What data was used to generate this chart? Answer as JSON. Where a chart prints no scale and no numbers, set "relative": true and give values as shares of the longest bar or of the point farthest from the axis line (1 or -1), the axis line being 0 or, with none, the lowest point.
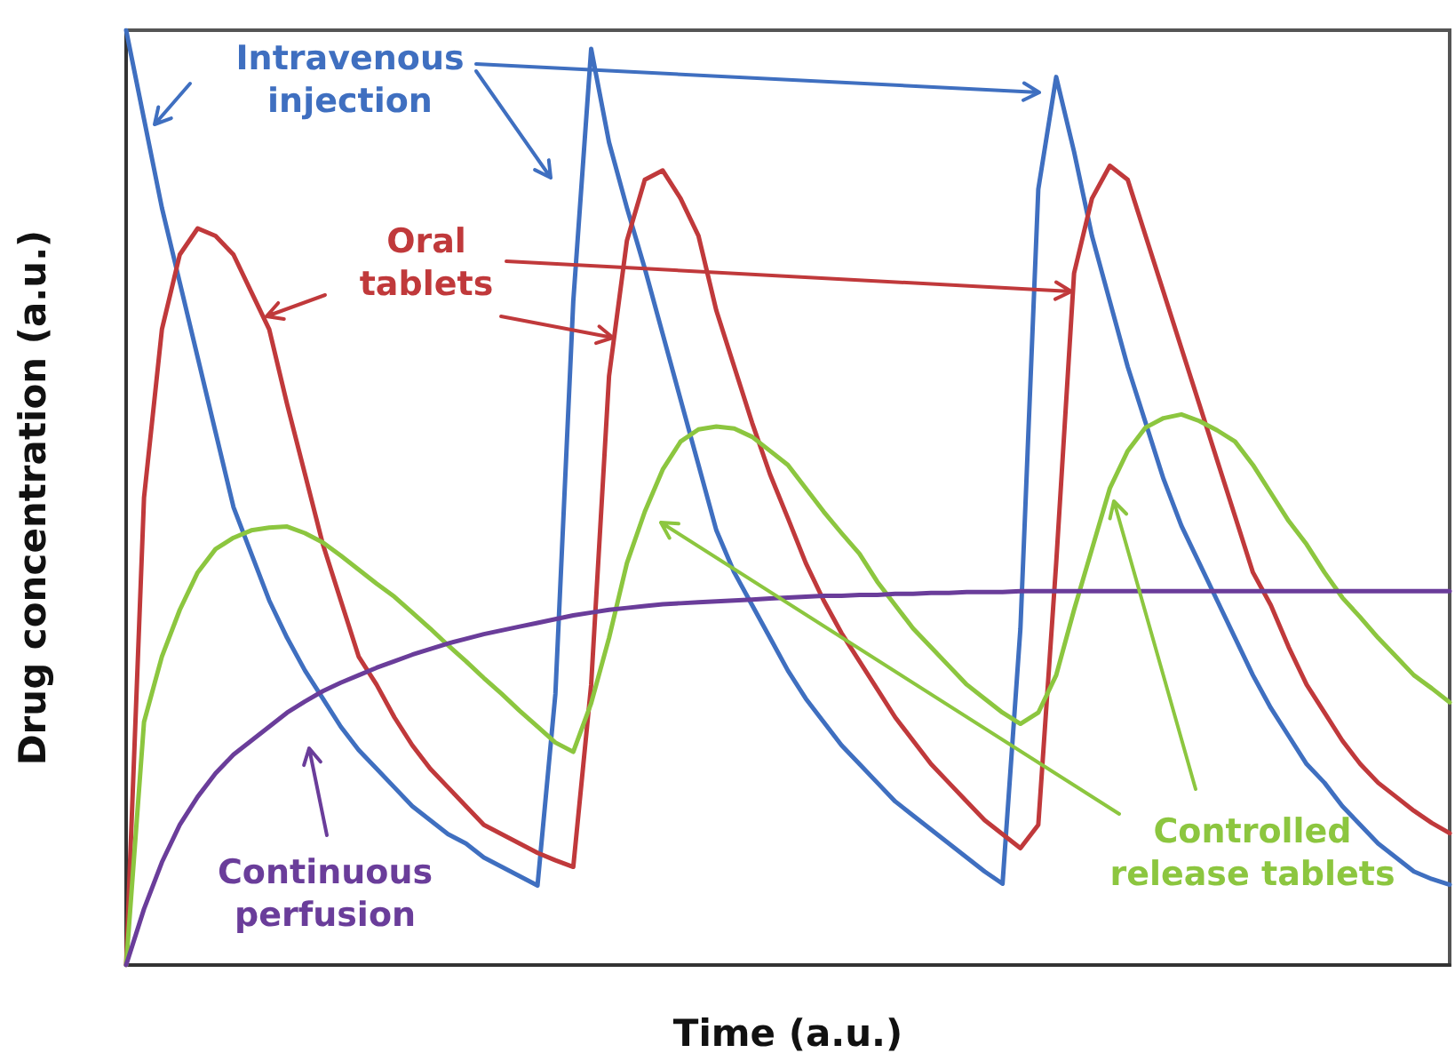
{
  "chart_data": {
    "type": "line",
    "relative": true,
    "xlabel": "Time (a.u.)",
    "ylabel": "Drug concentration (a.u.)",
    "grid": false,
    "marker": "none",
    "categories": [
      null,
      null,
      null,
      null,
      null,
      null,
      null,
      null,
      null,
      null,
      null,
      null,
      null,
      null,
      null,
      null,
      null,
      null,
      null,
      null,
      null,
      null,
      null,
      null,
      null,
      null,
      null,
      null,
      null,
      null,
      null,
      null,
      null,
      null,
      null,
      null,
      null,
      null,
      null,
      null,
      null,
      null,
      null,
      null,
      null,
      null,
      null,
      null,
      null,
      null,
      null,
      null,
      null,
      null,
      null,
      null,
      null,
      null,
      null,
      null,
      null,
      null,
      null,
      null,
      null,
      null,
      null,
      null,
      null,
      null,
      null,
      null,
      null,
      null,
      null
    ],
    "series": [
      {
        "name": "Intravenous injection",
        "color": "#3f6fc0",
        "values": [
          1,
          0.905,
          0.81,
          0.73,
          0.65,
          0.57,
          0.49,
          0.44,
          0.39,
          0.35,
          0.315,
          0.285,
          0.255,
          0.23,
          0.21,
          0.19,
          0.17,
          0.155,
          0.14,
          0.13,
          0.115,
          0.105,
          0.095,
          0.085,
          0.29,
          0.71,
          0.98,
          0.88,
          0.81,
          0.745,
          0.675,
          0.605,
          0.535,
          0.465,
          0.42,
          0.385,
          0.35,
          0.315,
          0.285,
          0.26,
          0.235,
          0.215,
          0.195,
          0.175,
          0.16,
          0.145,
          0.13,
          0.115,
          0.1,
          0.087,
          0.36,
          0.83,
          0.95,
          0.87,
          0.78,
          0.71,
          0.64,
          0.58,
          0.52,
          0.47,
          0.43,
          0.39,
          0.35,
          0.31,
          0.275,
          0.245,
          0.215,
          0.195,
          0.17,
          0.15,
          0.13,
          0.115,
          0.1,
          0.092,
          0.086
        ]
      },
      {
        "name": "Oral tablets",
        "color": "#c0393b",
        "values": [
          0,
          0.5,
          0.68,
          0.76,
          0.788,
          0.78,
          0.76,
          0.72,
          0.68,
          0.6,
          0.525,
          0.45,
          0.39,
          0.33,
          0.3,
          0.265,
          0.235,
          0.21,
          0.19,
          0.17,
          0.15,
          0.14,
          0.13,
          0.12,
          0.112,
          0.105,
          0.3,
          0.63,
          0.775,
          0.84,
          0.85,
          0.82,
          0.78,
          0.7,
          0.64,
          0.58,
          0.525,
          0.478,
          0.43,
          0.39,
          0.355,
          0.325,
          0.295,
          0.265,
          0.24,
          0.215,
          0.195,
          0.175,
          0.155,
          0.14,
          0.125,
          0.15,
          0.43,
          0.74,
          0.82,
          0.855,
          0.84,
          0.78,
          0.72,
          0.66,
          0.6,
          0.54,
          0.48,
          0.42,
          0.385,
          0.34,
          0.3,
          0.27,
          0.24,
          0.215,
          0.195,
          0.18,
          0.165,
          0.152,
          0.141
        ]
      },
      {
        "name": "Controlled release tablets",
        "color": "#8cc63f",
        "values": [
          0,
          0.26,
          0.33,
          0.38,
          0.42,
          0.445,
          0.457,
          0.465,
          0.468,
          0.469,
          0.462,
          0.452,
          0.438,
          0.423,
          0.408,
          0.394,
          0.377,
          0.36,
          0.342,
          0.325,
          0.307,
          0.29,
          0.272,
          0.255,
          0.238,
          0.228,
          0.28,
          0.35,
          0.43,
          0.485,
          0.53,
          0.56,
          0.573,
          0.576,
          0.574,
          0.565,
          0.55,
          0.535,
          0.51,
          0.485,
          0.462,
          0.44,
          0.41,
          0.385,
          0.36,
          0.34,
          0.32,
          0.3,
          0.285,
          0.27,
          0.258,
          0.27,
          0.31,
          0.38,
          0.445,
          0.51,
          0.55,
          0.575,
          0.585,
          0.589,
          0.582,
          0.572,
          0.56,
          0.535,
          0.505,
          0.475,
          0.45,
          0.42,
          0.393,
          0.372,
          0.35,
          0.33,
          0.31,
          0.296,
          0.281
        ]
      },
      {
        "name": "Continuous perfusion",
        "color": "#6a3d9a",
        "values": [
          0,
          0.06,
          0.11,
          0.15,
          0.18,
          0.205,
          0.225,
          0.24,
          0.255,
          0.27,
          0.282,
          0.293,
          0.302,
          0.31,
          0.318,
          0.325,
          0.332,
          0.338,
          0.344,
          0.349,
          0.354,
          0.358,
          0.362,
          0.366,
          0.37,
          0.374,
          0.377,
          0.38,
          0.382,
          0.384,
          0.386,
          0.387,
          0.388,
          0.389,
          0.39,
          0.391,
          0.392,
          0.393,
          0.394,
          0.395,
          0.395,
          0.396,
          0.396,
          0.397,
          0.397,
          0.398,
          0.398,
          0.399,
          0.399,
          0.399,
          0.4,
          0.4,
          0.4,
          0.4,
          0.4,
          0.4,
          0.4,
          0.4,
          0.4,
          0.4,
          0.4,
          0.4,
          0.4,
          0.4,
          0.4,
          0.4,
          0.4,
          0.4,
          0.4,
          0.4,
          0.4,
          0.4,
          0.4,
          0.4,
          0.4
        ]
      }
    ]
  }
}
